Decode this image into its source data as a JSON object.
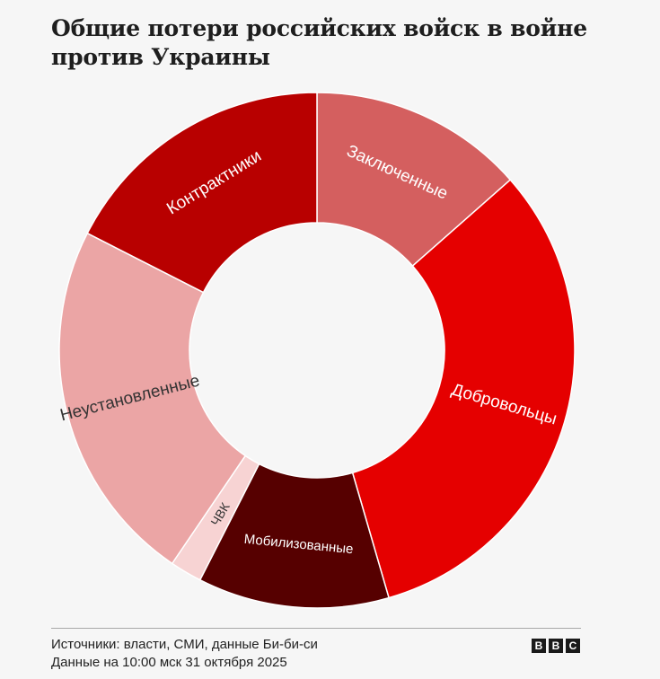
{
  "title": "Общие потери российских войск в войне против Украины",
  "chart_data": {
    "type": "pie",
    "variant": "donut",
    "categories": [
      "Заключенные",
      "Добровольцы",
      "Мобилизованные",
      "ЧВК",
      "Неустановленные",
      "Контрактники"
    ],
    "values": [
      13.5,
      32.0,
      12.0,
      2.0,
      23.0,
      17.5
    ],
    "unit": "% of total (estimated from slice angles)",
    "colors": [
      "#d45f5f",
      "#e50000",
      "#560000",
      "#f7d3d3",
      "#eba5a5",
      "#b80000"
    ],
    "label_colors": [
      "#ffffff",
      "#ffffff",
      "#ffffff",
      "#333333",
      "#333333",
      "#ffffff"
    ],
    "start_angle": "12 o'clock, clockwise",
    "legend": "none; labels inside slices"
  },
  "footer": {
    "sources": "Источники: власти, СМИ, данные Би-би-си",
    "updated": "Данные на 10:00 мск 31 октября 2025"
  },
  "logo": {
    "letters": [
      "B",
      "B",
      "C"
    ]
  }
}
